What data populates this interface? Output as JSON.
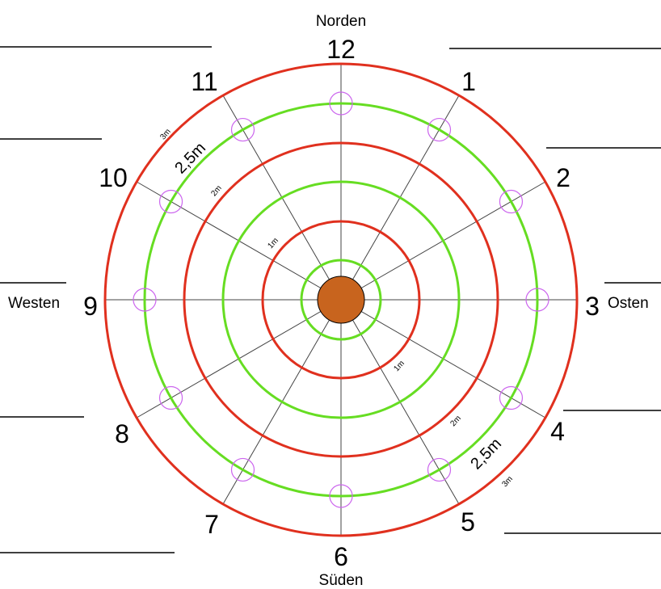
{
  "compass": {
    "north": "Norden",
    "south": "Süden",
    "west": "Westen",
    "east": "Osten"
  },
  "hours": [
    "12",
    "1",
    "2",
    "3",
    "4",
    "5",
    "6",
    "7",
    "8",
    "9",
    "10",
    "11"
  ],
  "rings": {
    "r3": "3m",
    "r25": "2,5m",
    "r2": "2m",
    "r1": "1m"
  },
  "colors": {
    "red_ring": "#e0301e",
    "green_ring": "#66dd22",
    "marker": "#cc66ee",
    "center": "#c8641e",
    "spoke": "#444444"
  }
}
